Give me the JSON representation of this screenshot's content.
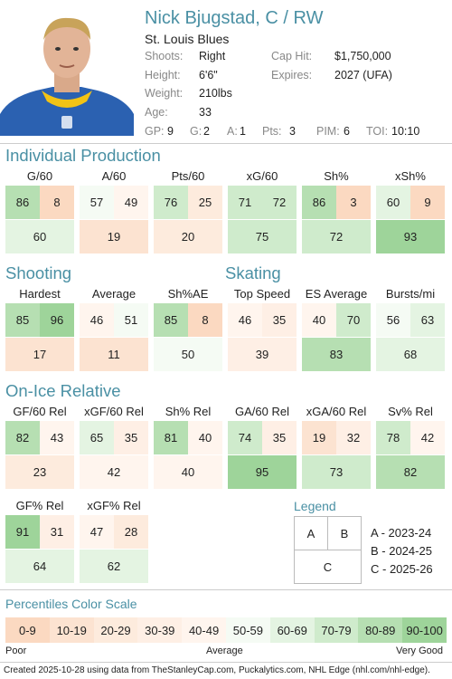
{
  "player": {
    "name": "Nick Bjugstad, C / RW",
    "team": "St. Louis Blues",
    "info": [
      {
        "label": "Shoots:",
        "value": "Right"
      },
      {
        "label": "Height:",
        "value": "6'6\""
      },
      {
        "label": "Weight:",
        "value": "210lbs"
      },
      {
        "label": "Age:",
        "value": "33"
      }
    ],
    "contract": [
      {
        "label": "Cap Hit:",
        "value": "$1,750,000"
      },
      {
        "label": "Expires:",
        "value": "2027 (UFA)"
      }
    ],
    "season_stats": [
      {
        "label": "GP:",
        "value": "9"
      },
      {
        "label": "G:",
        "value": "2"
      },
      {
        "label": "A:",
        "value": "1"
      },
      {
        "label": "Pts:",
        "value": "3"
      },
      {
        "label": "PIM:",
        "value": "6"
      },
      {
        "label": "TOI:",
        "value": "10:10"
      }
    ]
  },
  "sections": {
    "production": "Individual Production",
    "shooting": "Shooting",
    "skating": "Skating",
    "onice": "On-Ice Relative",
    "legend": "Legend",
    "scale": "Percentiles Color Scale"
  },
  "metrics": {
    "production": [
      {
        "label": "G/60",
        "a": 86,
        "b": 8,
        "c": 60
      },
      {
        "label": "A/60",
        "a": 57,
        "b": 49,
        "c": 19
      },
      {
        "label": "Pts/60",
        "a": 76,
        "b": 25,
        "c": 20
      },
      {
        "label": "xG/60",
        "a": 71,
        "b": 72,
        "c": 75
      },
      {
        "label": "Sh%",
        "a": 86,
        "b": 3,
        "c": 72
      },
      {
        "label": "xSh%",
        "a": 60,
        "b": 9,
        "c": 93
      }
    ],
    "shooting_skating": [
      {
        "label": "Hardest",
        "a": 85,
        "b": 96,
        "c": 17
      },
      {
        "label": "Average",
        "a": 46,
        "b": 51,
        "c": 11
      },
      {
        "label": "Sh%AE",
        "a": 85,
        "b": 8,
        "c": 50
      },
      {
        "label": "Top Speed",
        "a": 46,
        "b": 35,
        "c": 39
      },
      {
        "label": "ES Average",
        "a": 40,
        "b": 70,
        "c": 83
      },
      {
        "label": "Bursts/mi",
        "a": 56,
        "b": 63,
        "c": 68
      }
    ],
    "onice": [
      {
        "label": "GF/60 Rel",
        "a": 82,
        "b": 43,
        "c": 23
      },
      {
        "label": "xGF/60 Rel",
        "a": 65,
        "b": 35,
        "c": 42
      },
      {
        "label": "Sh% Rel",
        "a": 81,
        "b": 40,
        "c": 40
      },
      {
        "label": "GA/60 Rel",
        "a": 74,
        "b": 35,
        "c": 95
      },
      {
        "label": "xGA/60 Rel",
        "a": 19,
        "b": 32,
        "c": 73
      },
      {
        "label": "Sv% Rel",
        "a": 78,
        "b": 42,
        "c": 82
      }
    ],
    "onice2": [
      {
        "label": "GF% Rel",
        "a": 91,
        "b": 31,
        "c": 64
      },
      {
        "label": "xGF% Rel",
        "a": 47,
        "b": 28,
        "c": 62
      }
    ]
  },
  "legend": {
    "keys": [
      "A",
      "B",
      "C"
    ],
    "entries": [
      "A - 2023-24",
      "B - 2024-25",
      "C - 2025-26"
    ]
  },
  "scale": {
    "bins": [
      "0-9",
      "10-19",
      "20-29",
      "30-39",
      "40-49",
      "50-59",
      "60-69",
      "70-79",
      "80-89",
      "90-100"
    ],
    "colors": [
      "#fbd9c1",
      "#fce3d1",
      "#fdebdd",
      "#feefe5",
      "#fff5ee",
      "#f5fbf4",
      "#e4f4e2",
      "#cfebcc",
      "#b6dfb2",
      "#9ed49a"
    ],
    "captions": [
      "Poor",
      "Average",
      "Very Good"
    ]
  },
  "footer": "Created 2025-10-28 using data from TheStanleyCap.com, Puckalytics.com, NHL Edge (nhl.com/nhl-edge)."
}
